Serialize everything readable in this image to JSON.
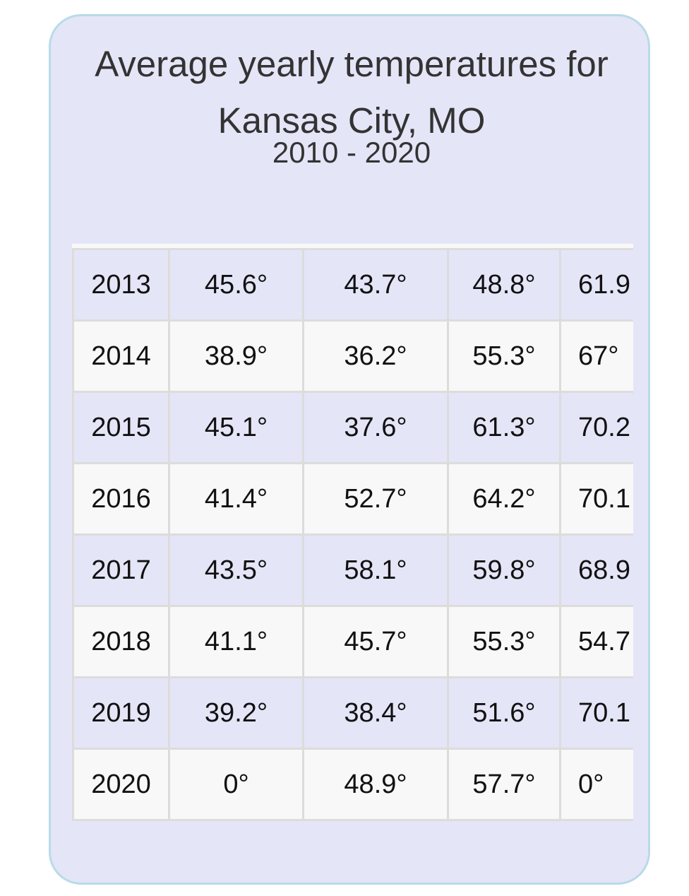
{
  "card": {
    "title_line1": "Average yearly temperatures for",
    "title_line2": "Kansas City, MO",
    "subtitle": "2010 - 2020"
  },
  "table": {
    "rows": [
      {
        "year": "2013",
        "c1": "45.6°",
        "c2": "43.7°",
        "c3": "48.8°",
        "c4": "61.9"
      },
      {
        "year": "2014",
        "c1": "38.9°",
        "c2": "36.2°",
        "c3": "55.3°",
        "c4": "67°"
      },
      {
        "year": "2015",
        "c1": "45.1°",
        "c2": "37.6°",
        "c3": "61.3°",
        "c4": "70.2"
      },
      {
        "year": "2016",
        "c1": "41.4°",
        "c2": "52.7°",
        "c3": "64.2°",
        "c4": "70.1"
      },
      {
        "year": "2017",
        "c1": "43.5°",
        "c2": "58.1°",
        "c3": "59.8°",
        "c4": "68.9"
      },
      {
        "year": "2018",
        "c1": "41.1°",
        "c2": "45.7°",
        "c3": "55.3°",
        "c4": "54.7"
      },
      {
        "year": "2019",
        "c1": "39.2°",
        "c2": "38.4°",
        "c3": "51.6°",
        "c4": "70.1"
      },
      {
        "year": "2020",
        "c1": "0°",
        "c2": "48.9°",
        "c3": "57.7°",
        "c4": "0°"
      }
    ]
  },
  "colors": {
    "card_background": "#e5e5f8",
    "card_border": "#b8dbe8",
    "row_alt": "#f8f8f8",
    "grid": "#dcdcdc"
  }
}
